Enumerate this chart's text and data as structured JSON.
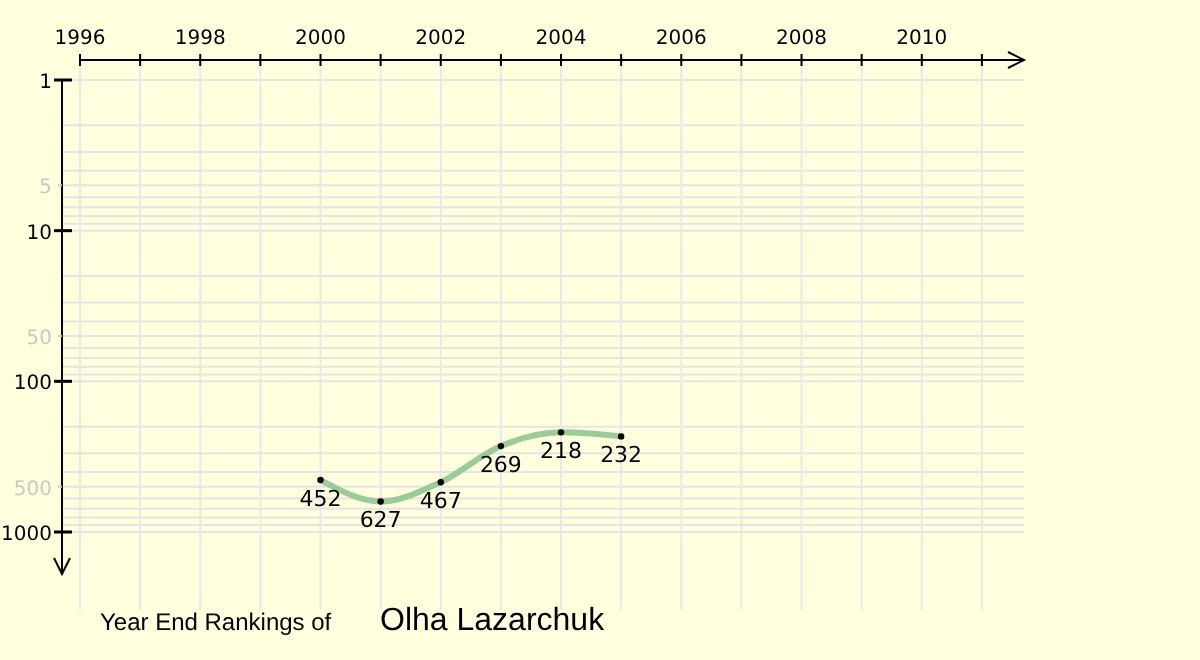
{
  "chart_data": {
    "type": "line",
    "title": "Year End Rankings of",
    "subtitle": "Olha Lazarchuk",
    "x": [
      2000,
      2001,
      2002,
      2003,
      2004,
      2005
    ],
    "series": [
      {
        "color": "#99cc99",
        "values": [
          452,
          627,
          467,
          269,
          218,
          232
        ]
      }
    ],
    "xlim": [
      1996,
      2011.7
    ],
    "xticks": [
      1996,
      {
        "value": 1997,
        "label": null
      },
      1998,
      {
        "value": 1999,
        "label": null
      },
      2000,
      {
        "value": 2001,
        "label": null
      },
      2002,
      {
        "value": 2003,
        "label": null
      },
      2004,
      {
        "value": 2005,
        "label": null
      },
      2006,
      {
        "value": 2007,
        "label": null
      },
      2008,
      {
        "value": 2009,
        "label": null
      },
      2010,
      {
        "value": 2011,
        "label": null
      }
    ],
    "ylim": [
      1900,
      1
    ],
    "yticks": [
      1,
      5,
      10,
      50,
      100,
      500,
      1000
    ],
    "log": "y",
    "grid": true,
    "marker": "circle",
    "data_labels": true
  }
}
